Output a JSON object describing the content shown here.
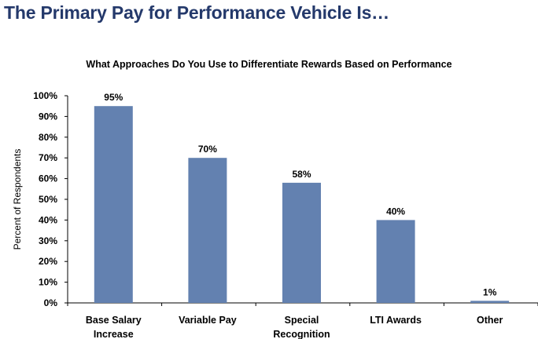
{
  "page_title": "The Primary Pay for Performance Vehicle Is…",
  "chart_data": {
    "type": "bar",
    "title": "What Approaches Do You Use to Differentiate Rewards Based on Performance",
    "xlabel": "",
    "ylabel": "Percent of Respondents",
    "categories": [
      [
        "Base Salary",
        "Increase"
      ],
      [
        "Variable Pay"
      ],
      [
        "Special",
        "Recognition"
      ],
      [
        "LTI Awards"
      ],
      [
        "Other"
      ]
    ],
    "values": [
      95,
      70,
      58,
      40,
      1
    ],
    "data_labels": [
      "95%",
      "70%",
      "58%",
      "40%",
      "1%"
    ],
    "ylim": [
      0,
      100
    ],
    "yticks": [
      "0%",
      "10%",
      "20%",
      "30%",
      "40%",
      "50%",
      "60%",
      "70%",
      "80%",
      "90%",
      "100%"
    ],
    "grid": false,
    "bar_color": "#6381B0",
    "title_color": "#24396B"
  }
}
